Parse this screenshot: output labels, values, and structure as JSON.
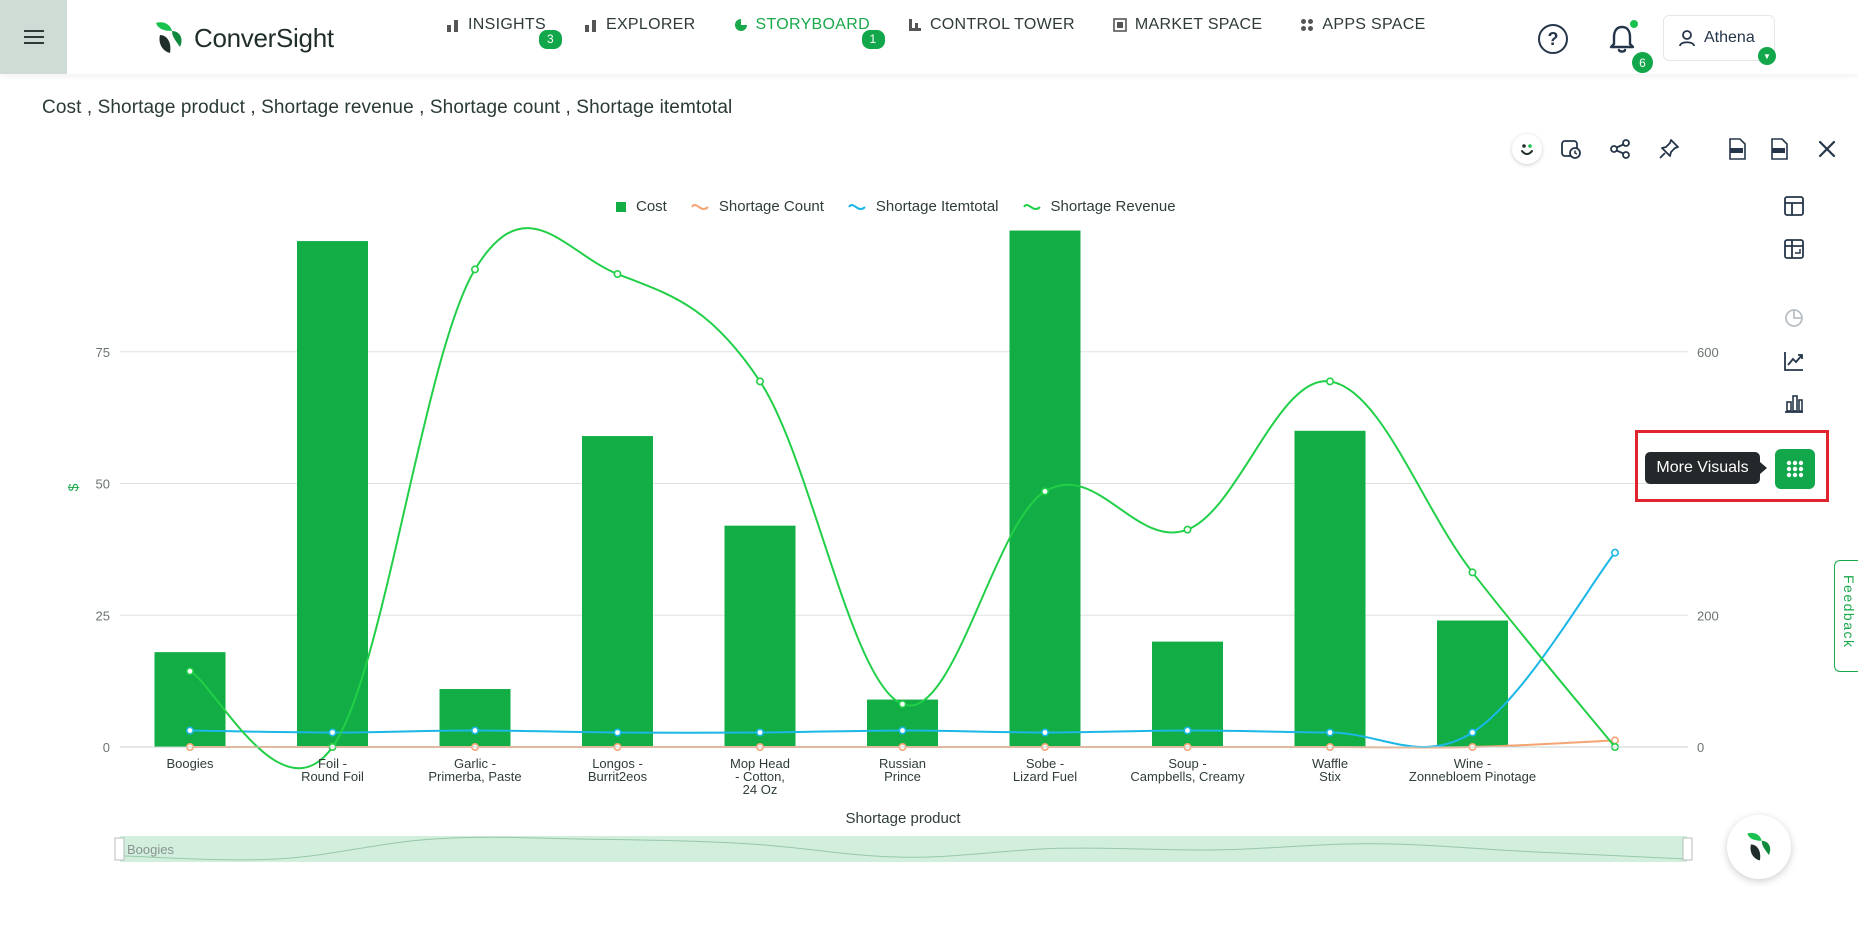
{
  "app": {
    "brand": "ConverSight",
    "nav": [
      {
        "label": "INSIGHTS",
        "badge": "3"
      },
      {
        "label": "EXPLORER",
        "badge": ""
      },
      {
        "label": "STORYBOARD",
        "badge": "1"
      },
      {
        "label": "CONTROL TOWER",
        "badge": ""
      },
      {
        "label": "MARKET SPACE",
        "badge": ""
      },
      {
        "label": "APPS SPACE",
        "badge": ""
      }
    ],
    "help_glyph": "?",
    "notifications_count": "6",
    "user_name": "Athena"
  },
  "page": {
    "title": "Cost , Shortage product , Shortage revenue , Shortage count , Shortage itemtotal"
  },
  "side_panel": {
    "tooltip": "More Visuals",
    "feedback_label": "Feedback"
  },
  "range_slider": {
    "start_label": "Boogies"
  },
  "colors": {
    "brand_green": "#12a74a",
    "cost": "#12ad45",
    "shortage_count": "#f4a472",
    "shortage_itemtotal": "#1ab7e6",
    "shortage_revenue": "#22cf48",
    "highlight": "#e0252e"
  },
  "chart_data": {
    "type": "bar",
    "title": "",
    "xlabel": "Shortage product",
    "ylabel": "$",
    "ylim": [
      0,
      100
    ],
    "y_ticks": [
      0,
      25,
      50,
      75
    ],
    "y2lim": [
      0,
      800
    ],
    "y2_ticks": [
      0,
      200,
      600
    ],
    "legend_position": "top-center",
    "categories": [
      [
        "Boogies"
      ],
      [
        "Foil -",
        "Round Foil"
      ],
      [
        "Garlic -",
        "Primerba, Paste"
      ],
      [
        "Longos -",
        "Burrit2eos"
      ],
      [
        "Mop Head",
        "- Cotton,",
        "24 Oz"
      ],
      [
        "Russian",
        "Prince"
      ],
      [
        "Sobe -",
        "Lizard Fuel"
      ],
      [
        "Soup -",
        "Campbells, Creamy"
      ],
      [
        "Waffle",
        "Stix"
      ],
      [
        "Wine -",
        "Zonnebloem Pinotage"
      ],
      [
        ""
      ]
    ],
    "series": [
      {
        "name": "Cost",
        "kind": "bar",
        "axis": "left",
        "values": [
          18,
          96,
          11,
          59,
          42,
          9,
          98,
          20,
          60,
          24,
          null
        ]
      },
      {
        "name": "Shortage Count",
        "kind": "line",
        "axis": "right",
        "values": [
          0,
          0,
          0,
          0,
          0,
          0,
          0,
          0,
          0,
          0,
          10
        ]
      },
      {
        "name": "Shortage Itemtotal",
        "kind": "line",
        "axis": "right",
        "values": [
          25,
          22,
          25,
          22,
          22,
          25,
          22,
          25,
          22,
          22,
          295
        ]
      },
      {
        "name": "Shortage Revenue",
        "kind": "line",
        "axis": "right",
        "values": [
          115,
          0,
          725,
          718,
          555,
          65,
          388,
          330,
          555,
          265,
          0
        ]
      }
    ]
  }
}
